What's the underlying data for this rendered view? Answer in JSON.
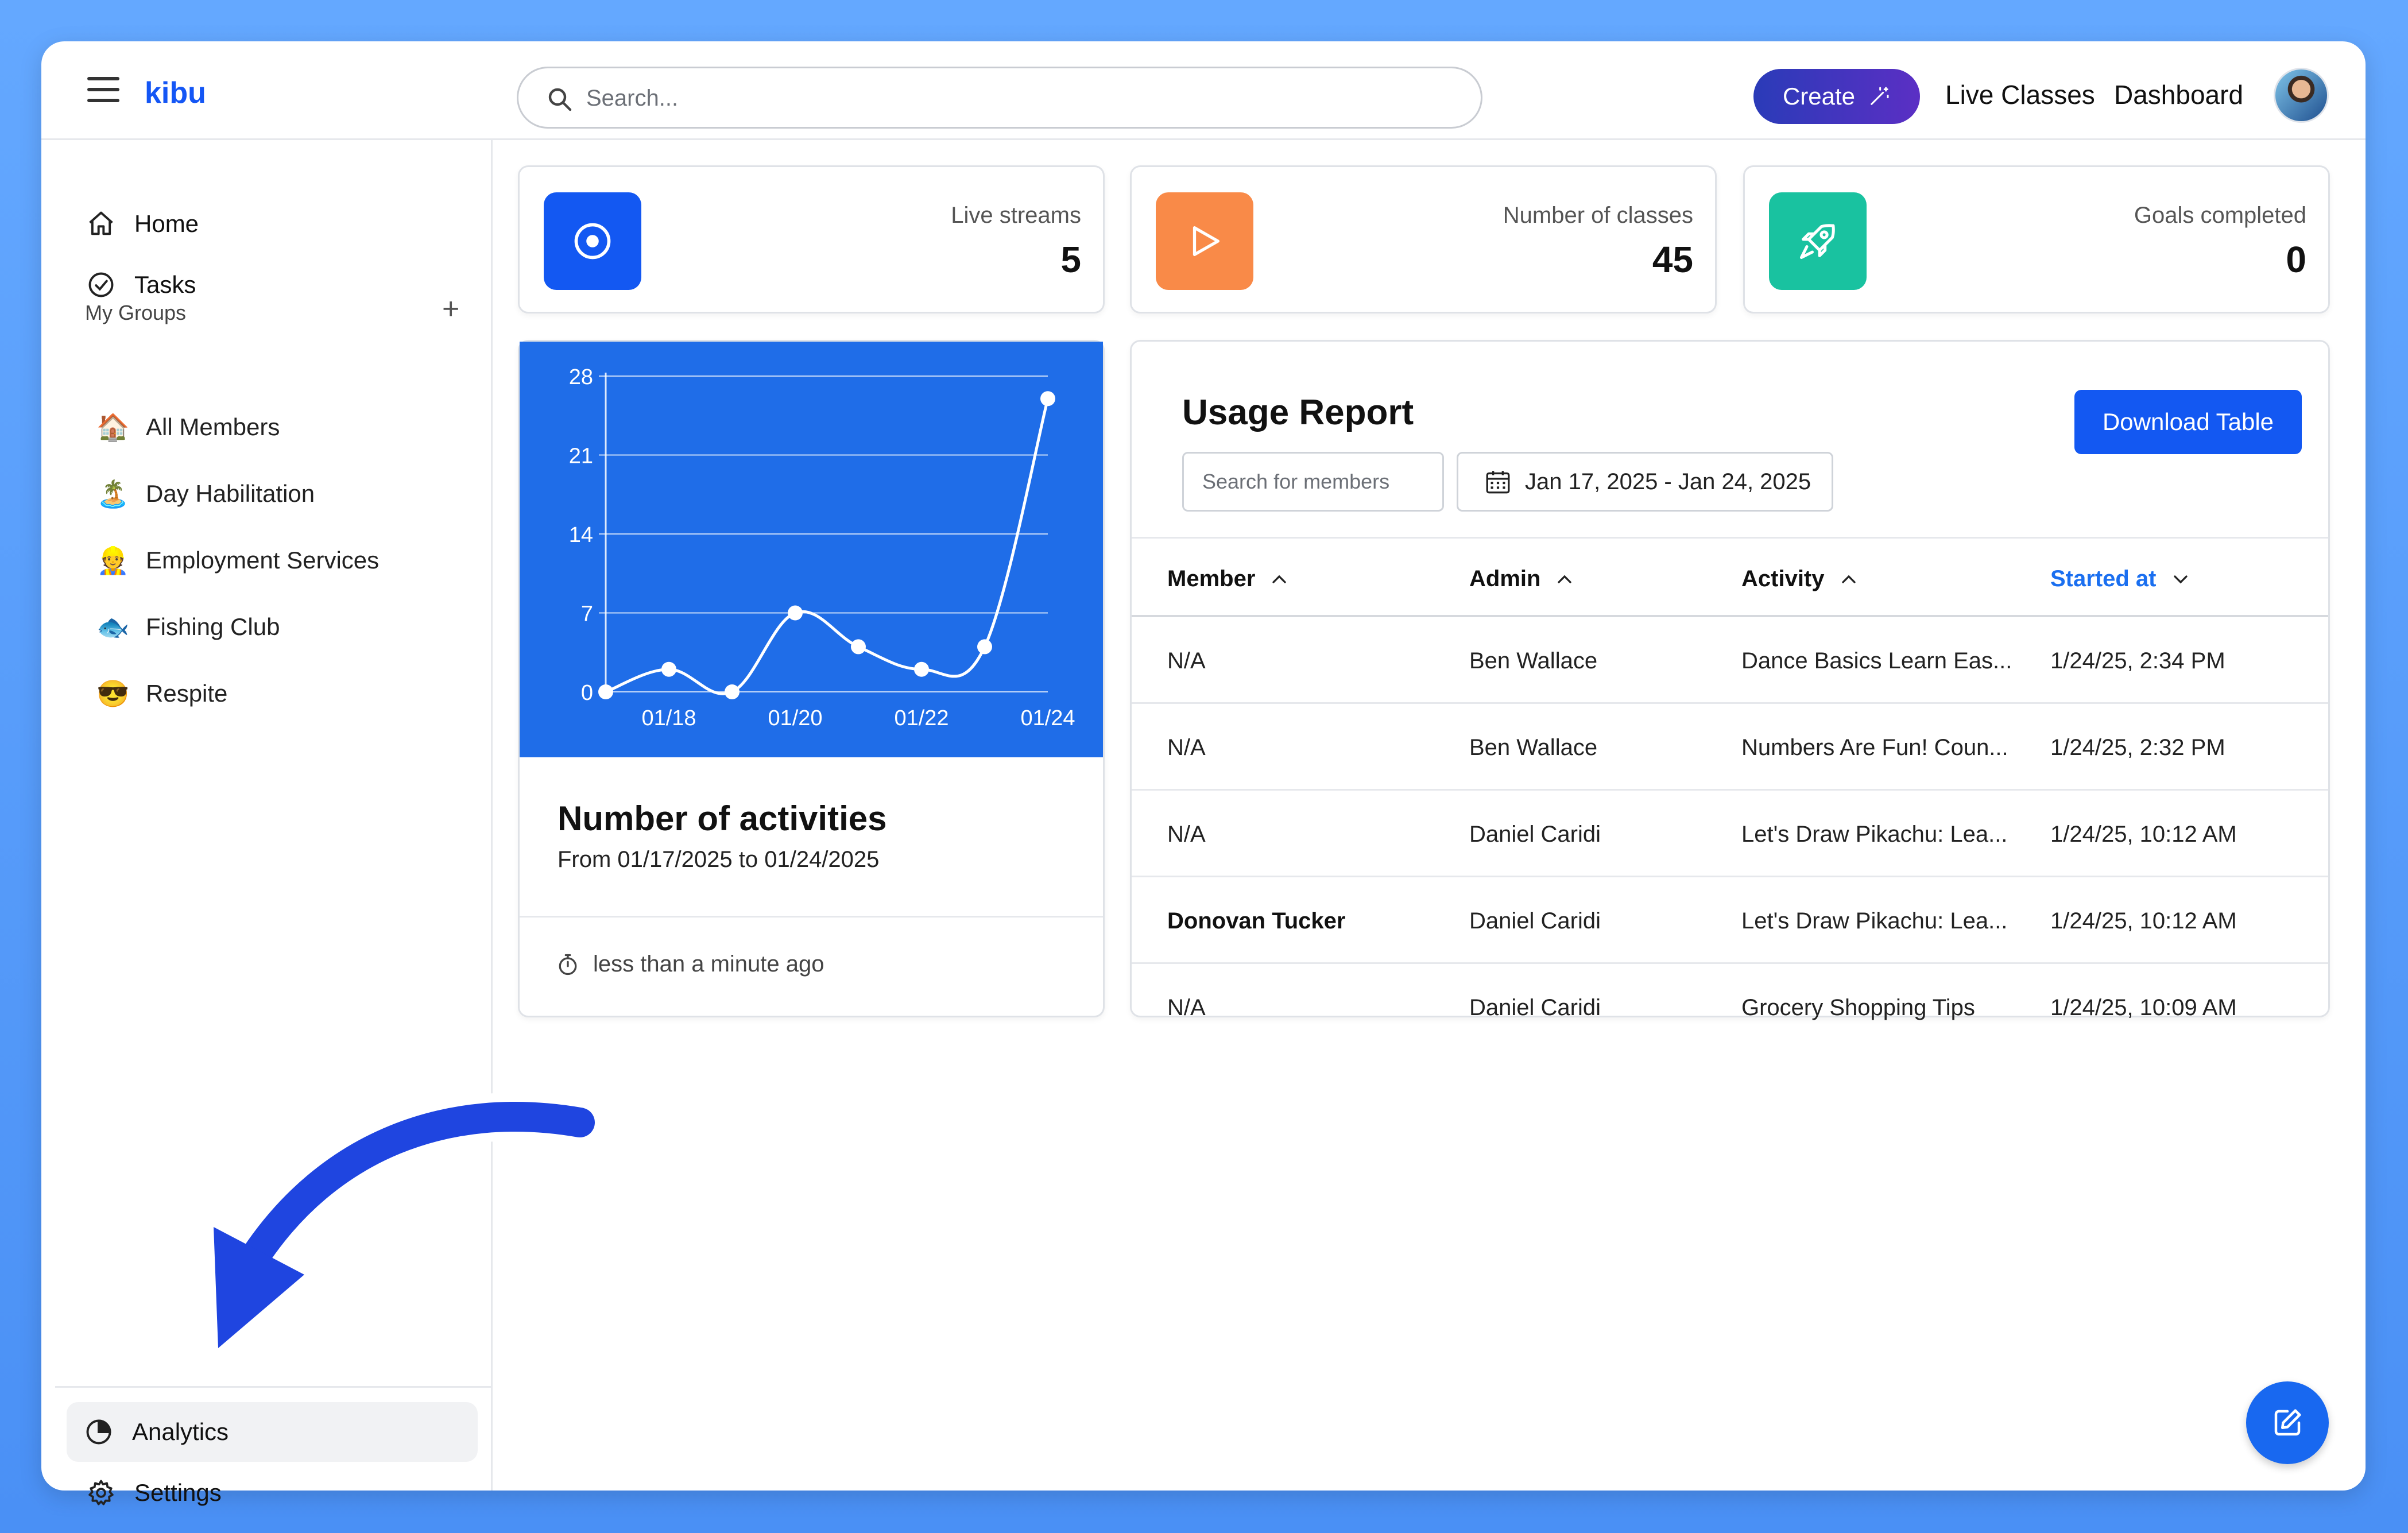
{
  "app": {
    "logo": "kibu"
  },
  "search": {
    "placeholder": "Search..."
  },
  "topnav": {
    "create_label": "Create",
    "live_classes": "Live Classes",
    "dashboard": "Dashboard"
  },
  "sidebar": {
    "home": "Home",
    "tasks": "Tasks",
    "groups_label": "My Groups",
    "groups_add": "+",
    "groups": [
      {
        "emoji": "🏠",
        "label": "All Members"
      },
      {
        "emoji": "🏝️",
        "label": "Day Habilitation"
      },
      {
        "emoji": "👷",
        "label": "Employment Services"
      },
      {
        "emoji": "🐟",
        "label": "Fishing Club"
      },
      {
        "emoji": "😎",
        "label": "Respite"
      }
    ],
    "analytics": "Analytics",
    "settings": "Settings"
  },
  "stats": [
    {
      "label": "Live streams",
      "value": "5",
      "color": "#1358f2",
      "icon": "record-icon"
    },
    {
      "label": "Number of classes",
      "value": "45",
      "color": "#f98a48",
      "icon": "play-icon"
    },
    {
      "label": "Goals completed",
      "value": "0",
      "color": "#19c2a0",
      "icon": "rocket-icon"
    }
  ],
  "activities": {
    "title": "Number of activities",
    "subtitle": "From 01/17/2025 to 01/24/2025",
    "footer": "less than a minute ago"
  },
  "chart_data": {
    "type": "line",
    "x": [
      "01/17",
      "01/18",
      "01/19",
      "01/20",
      "01/21",
      "01/22",
      "01/23",
      "01/24"
    ],
    "x_tick_labels": [
      "01/18",
      "01/20",
      "01/22",
      "01/24"
    ],
    "y_ticks": [
      "0",
      "7",
      "14",
      "21",
      "28"
    ],
    "values": [
      0,
      2,
      0,
      7,
      4,
      2,
      4,
      26
    ],
    "ylim": [
      0,
      28
    ],
    "grid": true,
    "background": "#1f6de8",
    "line_color": "#ffffff"
  },
  "usage": {
    "title": "Usage Report",
    "search_placeholder": "Search for members",
    "date_range": "Jan 17, 2025 - Jan 24, 2025",
    "download_label": "Download Table",
    "columns": [
      "Member",
      "Admin",
      "Activity",
      "Started at"
    ],
    "rows": [
      {
        "member": "N/A",
        "admin": "Ben Wallace",
        "activity": "Dance Basics Learn Eas...",
        "started": "1/24/25, 2:34 PM"
      },
      {
        "member": "N/A",
        "admin": "Ben Wallace",
        "activity": "Numbers Are Fun! Coun...",
        "started": "1/24/25, 2:32 PM"
      },
      {
        "member": "N/A",
        "admin": "Daniel Caridi",
        "activity": "Let's Draw Pikachu: Lea...",
        "started": "1/24/25, 10:12 AM"
      },
      {
        "member": "Donovan Tucker",
        "admin": "Daniel Caridi",
        "activity": "Let's Draw Pikachu: Lea...",
        "started": "1/24/25, 10:12 AM"
      },
      {
        "member": "N/A",
        "admin": "Daniel Caridi",
        "activity": "Grocery Shopping Tips",
        "started": "1/24/25, 10:09 AM"
      }
    ]
  }
}
